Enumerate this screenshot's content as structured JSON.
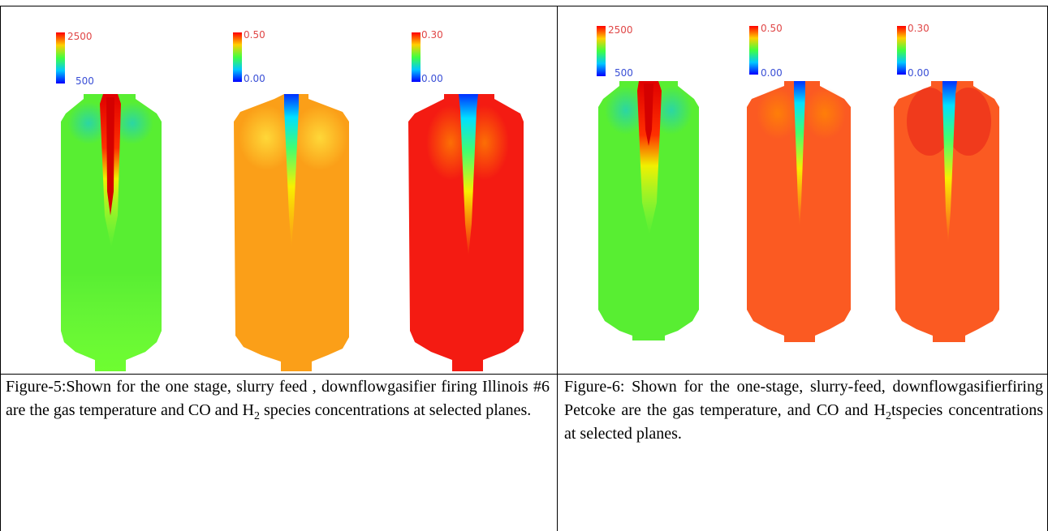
{
  "table": {
    "left": {
      "figure": {
        "contours": [
          {
            "quantity": "temperature",
            "colorbar": {
              "max": "2500",
              "min": "500"
            }
          },
          {
            "quantity": "CO",
            "colorbar": {
              "max": "0.50",
              "min": "0.00"
            }
          },
          {
            "quantity": "H2",
            "colorbar": {
              "max": "0.30",
              "min": "0.00"
            }
          }
        ]
      },
      "caption": {
        "part1": "Figure-5:Shown for the one stage, slurry feed , downflowgasifier firing Illinois #6 are the gas temperature and CO and H",
        "sub": "2",
        "part2": " species concentrations at selected planes."
      }
    },
    "right": {
      "figure": {
        "contours": [
          {
            "quantity": "temperature",
            "colorbar": {
              "max": "2500",
              "min": "500"
            }
          },
          {
            "quantity": "CO",
            "colorbar": {
              "max": "0.50",
              "min": "0.00"
            }
          },
          {
            "quantity": "H2",
            "colorbar": {
              "max": "0.30",
              "min": "0.00"
            }
          }
        ]
      },
      "caption": {
        "part1": "Figure-6: Shown for the one-stage, slurry-feed, downflowgasifierfiring Petcoke are the gas temperature, and CO and H",
        "sub": "2",
        "part2": "tspecies concentrations at selected planes."
      }
    }
  }
}
